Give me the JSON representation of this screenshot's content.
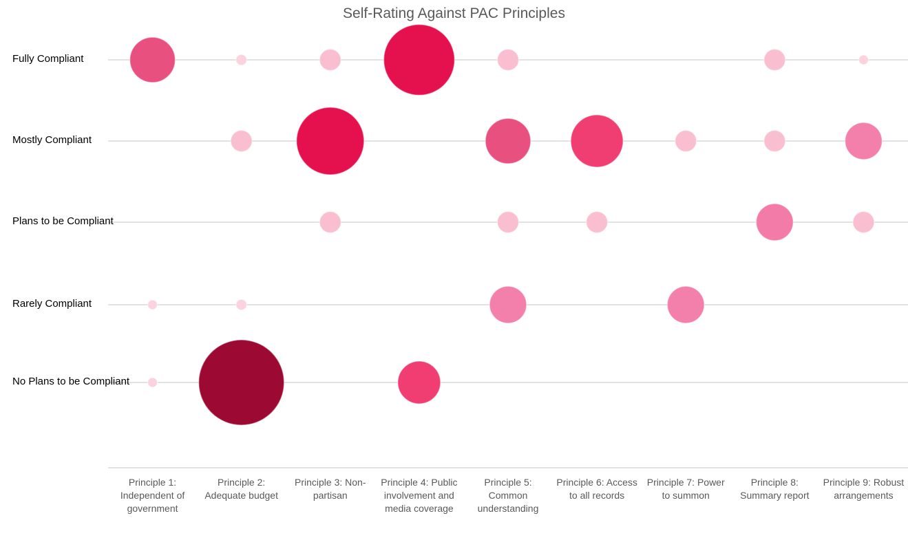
{
  "chart_data": {
    "type": "bubble",
    "title": "Self-Rating Against PAC Principles",
    "categories": [
      "Principle 1: Independent of government",
      "Principle 2: Adequate budget",
      "Principle 3: Non-partisan",
      "Principle 4: Public involvement and media coverage",
      "Principle 5: Common understanding",
      "Principle 6: Access to all records",
      "Principle 7: Power to summon",
      "Principle 8: Summary report",
      "Principle 9: Robust arrangements"
    ],
    "levels": [
      "Fully Compliant",
      "Mostly Compliant",
      "Plans to be Compliant",
      "Rarely Compliant",
      "No Plans to be Compliant"
    ],
    "values": [
      [
        4.5,
        0.25,
        1,
        11,
        1,
        null,
        null,
        1,
        0.2
      ],
      [
        null,
        1,
        10,
        null,
        4.5,
        6,
        1,
        1,
        3
      ],
      [
        null,
        null,
        1,
        null,
        1,
        1,
        null,
        3,
        1
      ],
      [
        0.2,
        0.25,
        null,
        null,
        3,
        null,
        3,
        null,
        null
      ],
      [
        0.2,
        16,
        null,
        4,
        null,
        null,
        null,
        null,
        null
      ]
    ],
    "colors": [
      [
        "#e8517f",
        "#fbd3df",
        "#f9bfd1",
        "#e5114f",
        "#f9bfd1",
        null,
        null,
        "#f9bfd1",
        "#fbd3df"
      ],
      [
        null,
        "#f9bfd1",
        "#e5114f",
        null,
        "#e8517f",
        "#f03e72",
        "#f9bfd1",
        "#f9bfd1",
        "#f380aa"
      ],
      [
        null,
        null,
        "#f9bfd1",
        null,
        "#f9bfd1",
        "#f9bfd1",
        null,
        "#f37ba7",
        "#f9bfd1"
      ],
      [
        "#fbd3df",
        "#fbd3df",
        null,
        null,
        "#f380aa",
        null,
        "#f380aa",
        null,
        null
      ],
      [
        "#fbd3df",
        "#9c0a33",
        null,
        "#f03e72",
        null,
        null,
        null,
        null,
        null
      ]
    ],
    "grid": true
  }
}
